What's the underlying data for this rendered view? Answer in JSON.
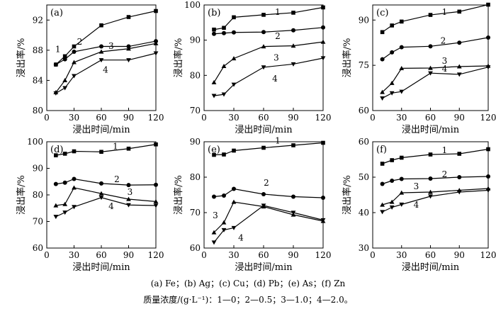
{
  "caption": {
    "line1": "(a) Fe；(b) Ag；(c) Cu；(d) Pb；(e) As；(f) Zn",
    "line2": "质量浓度/(g·L⁻¹)：1—0；2—0.5；3—1.0；4—2.0。"
  },
  "chart_data": [
    {
      "type": "line",
      "panel": "(a)",
      "xlabel": "浸出时间/min",
      "ylabel": "浸出率/%",
      "xlim": [
        0,
        120
      ],
      "ylim": [
        80,
        94
      ],
      "xticks": [
        0,
        30,
        60,
        90,
        120
      ],
      "yticks": [
        80,
        84,
        88,
        92
      ],
      "x": [
        10,
        20,
        30,
        60,
        90,
        120
      ],
      "series": [
        {
          "name": "1",
          "marker": "square",
          "values": [
            86.1,
            87.2,
            88.5,
            91.3,
            92.4,
            93.2
          ]
        },
        {
          "name": "2",
          "marker": "circle",
          "values": [
            86.1,
            86.8,
            87.8,
            88.5,
            88.5,
            89.2
          ]
        },
        {
          "name": "3",
          "marker": "triangle-up",
          "values": [
            82.4,
            84.0,
            86.4,
            87.8,
            88.2,
            88.9
          ]
        },
        {
          "name": "4",
          "marker": "triangle-down",
          "values": [
            82.3,
            83.0,
            84.6,
            86.7,
            86.7,
            87.6
          ]
        }
      ]
    },
    {
      "type": "line",
      "panel": "(b)",
      "xlabel": "浸出时间/min",
      "ylabel": "浸出率/%",
      "xlim": [
        0,
        120
      ],
      "ylim": [
        70,
        100
      ],
      "xticks": [
        0,
        30,
        60,
        90,
        120
      ],
      "yticks": [
        70,
        80,
        90,
        100
      ],
      "x": [
        10,
        20,
        30,
        60,
        90,
        120
      ],
      "series": [
        {
          "name": "1",
          "marker": "square",
          "values": [
            93.0,
            93.5,
            96.5,
            97.2,
            97.8,
            99.3
          ]
        },
        {
          "name": "2",
          "marker": "circle",
          "values": [
            91.8,
            92.0,
            92.2,
            92.3,
            92.8,
            93.6
          ]
        },
        {
          "name": "3",
          "marker": "triangle-up",
          "values": [
            78.0,
            82.6,
            84.8,
            88.2,
            88.4,
            89.5
          ]
        },
        {
          "name": "4",
          "marker": "triangle-down",
          "values": [
            74.2,
            74.6,
            77.4,
            82.3,
            83.2,
            84.9
          ]
        }
      ]
    },
    {
      "type": "line",
      "panel": "(c)",
      "xlabel": "浸出时间/min",
      "ylabel": "浸出率/%",
      "xlim": [
        0,
        120
      ],
      "ylim": [
        60,
        95
      ],
      "xticks": [
        0,
        30,
        60,
        90,
        120
      ],
      "yticks": [
        60,
        75,
        90
      ],
      "x": [
        10,
        20,
        30,
        60,
        90,
        120
      ],
      "series": [
        {
          "name": "1",
          "marker": "square",
          "values": [
            86.0,
            88.2,
            89.5,
            91.7,
            92.8,
            95.1
          ]
        },
        {
          "name": "2",
          "marker": "circle",
          "values": [
            77.0,
            79.3,
            81.0,
            81.3,
            82.5,
            84.2
          ]
        },
        {
          "name": "3",
          "marker": "triangle-up",
          "values": [
            66.1,
            69.1,
            74.0,
            74.1,
            74.6,
            74.8
          ]
        },
        {
          "name": "4",
          "marker": "triangle-down",
          "values": [
            64.1,
            65.8,
            66.3,
            72.4,
            72.0,
            74.4
          ]
        }
      ]
    },
    {
      "type": "line",
      "panel": "(d)",
      "xlabel": "浸出时间/min",
      "ylabel": "浸出率/%",
      "xlim": [
        0,
        120
      ],
      "ylim": [
        60,
        100
      ],
      "xticks": [
        0,
        30,
        60,
        90,
        120
      ],
      "yticks": [
        60,
        70,
        80,
        90,
        100
      ],
      "x": [
        10,
        20,
        30,
        60,
        90,
        120
      ],
      "series": [
        {
          "name": "1",
          "marker": "square",
          "values": [
            94.9,
            95.5,
            96.4,
            96.2,
            97.4,
            99.0
          ]
        },
        {
          "name": "2",
          "marker": "circle",
          "values": [
            84.1,
            84.6,
            86.0,
            84.3,
            83.7,
            83.8
          ]
        },
        {
          "name": "3",
          "marker": "triangle-up",
          "values": [
            76.0,
            76.5,
            82.7,
            80.5,
            78.4,
            77.5
          ]
        },
        {
          "name": "4",
          "marker": "triangle-down",
          "values": [
            71.8,
            73.4,
            75.5,
            79.0,
            76.2,
            76.0
          ]
        }
      ]
    },
    {
      "type": "line",
      "panel": "(e)",
      "xlabel": "浸出时间/min",
      "ylabel": "浸出率/%",
      "xlim": [
        0,
        120
      ],
      "ylim": [
        60,
        90
      ],
      "xticks": [
        0,
        30,
        60,
        90,
        120
      ],
      "yticks": [
        60,
        70,
        80,
        90
      ],
      "x": [
        10,
        20,
        30,
        60,
        90,
        120
      ],
      "series": [
        {
          "name": "1",
          "marker": "square",
          "values": [
            86.3,
            86.4,
            87.5,
            88.3,
            89.0,
            89.7
          ]
        },
        {
          "name": "2",
          "marker": "circle",
          "values": [
            74.5,
            74.8,
            76.7,
            75.2,
            74.5,
            74.2
          ]
        },
        {
          "name": "3",
          "marker": "triangle-up",
          "values": [
            64.4,
            67.2,
            73.0,
            71.7,
            69.4,
            67.6
          ]
        },
        {
          "name": "4",
          "marker": "triangle-down",
          "values": [
            61.6,
            65.1,
            65.7,
            72.0,
            70.0,
            67.9
          ]
        }
      ]
    },
    {
      "type": "line",
      "panel": "(f)",
      "xlabel": "浸出时间/min",
      "ylabel": "浸出率/%",
      "xlim": [
        0,
        120
      ],
      "ylim": [
        30,
        60
      ],
      "xticks": [
        0,
        30,
        60,
        90,
        120
      ],
      "yticks": [
        30,
        40,
        50,
        60
      ],
      "x": [
        10,
        20,
        30,
        60,
        90,
        120
      ],
      "series": [
        {
          "name": "1",
          "marker": "square",
          "values": [
            53.8,
            54.8,
            55.5,
            56.4,
            56.6,
            57.9
          ]
        },
        {
          "name": "2",
          "marker": "circle",
          "values": [
            48.1,
            49.0,
            49.5,
            49.6,
            50.0,
            50.2
          ]
        },
        {
          "name": "3",
          "marker": "triangle-up",
          "values": [
            42.2,
            43.0,
            45.6,
            45.8,
            46.3,
            46.8
          ]
        },
        {
          "name": "4",
          "marker": "triangle-down",
          "values": [
            40.2,
            41.5,
            42.3,
            44.6,
            45.8,
            46.3
          ]
        }
      ]
    }
  ]
}
